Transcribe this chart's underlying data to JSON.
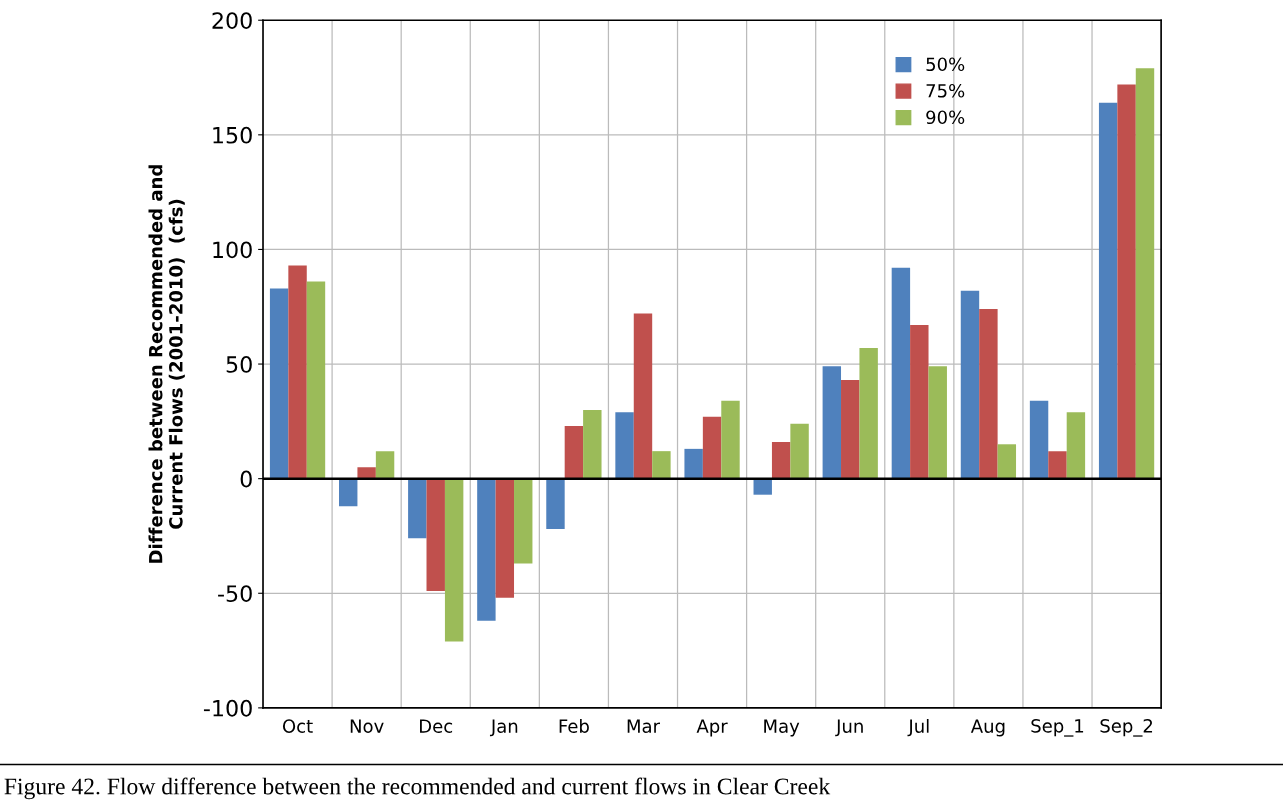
{
  "chart_data": {
    "type": "bar",
    "ylabel": "Difference between Recommended and\nCurrent Flows (2001-2010)  (cfs)",
    "categories": [
      "Oct",
      "Nov",
      "Dec",
      "Jan",
      "Feb",
      "Mar",
      "Apr",
      "May",
      "Jun",
      "Jul",
      "Aug",
      "Sep_1",
      "Sep_2"
    ],
    "series": [
      {
        "name": "50%",
        "color": "#4f81bd",
        "values": [
          83,
          -12,
          -26,
          -62,
          -22,
          29,
          13,
          -7,
          49,
          92,
          82,
          34,
          164
        ]
      },
      {
        "name": "75%",
        "color": "#c0504d",
        "values": [
          93,
          5,
          -49,
          -52,
          23,
          72,
          27,
          16,
          43,
          67,
          74,
          12,
          172
        ]
      },
      {
        "name": "90%",
        "color": "#9bbb59",
        "values": [
          86,
          12,
          -71,
          -37,
          30,
          12,
          34,
          24,
          57,
          49,
          15,
          29,
          179
        ]
      }
    ],
    "ylim": [
      -100,
      200
    ],
    "yticks": [
      -100,
      -50,
      0,
      50,
      100,
      150,
      200
    ],
    "grid": true,
    "legend": "top right",
    "annotations": [
      "Figure 42. Flow difference between the recommended and current flows in Clear Creek"
    ]
  }
}
